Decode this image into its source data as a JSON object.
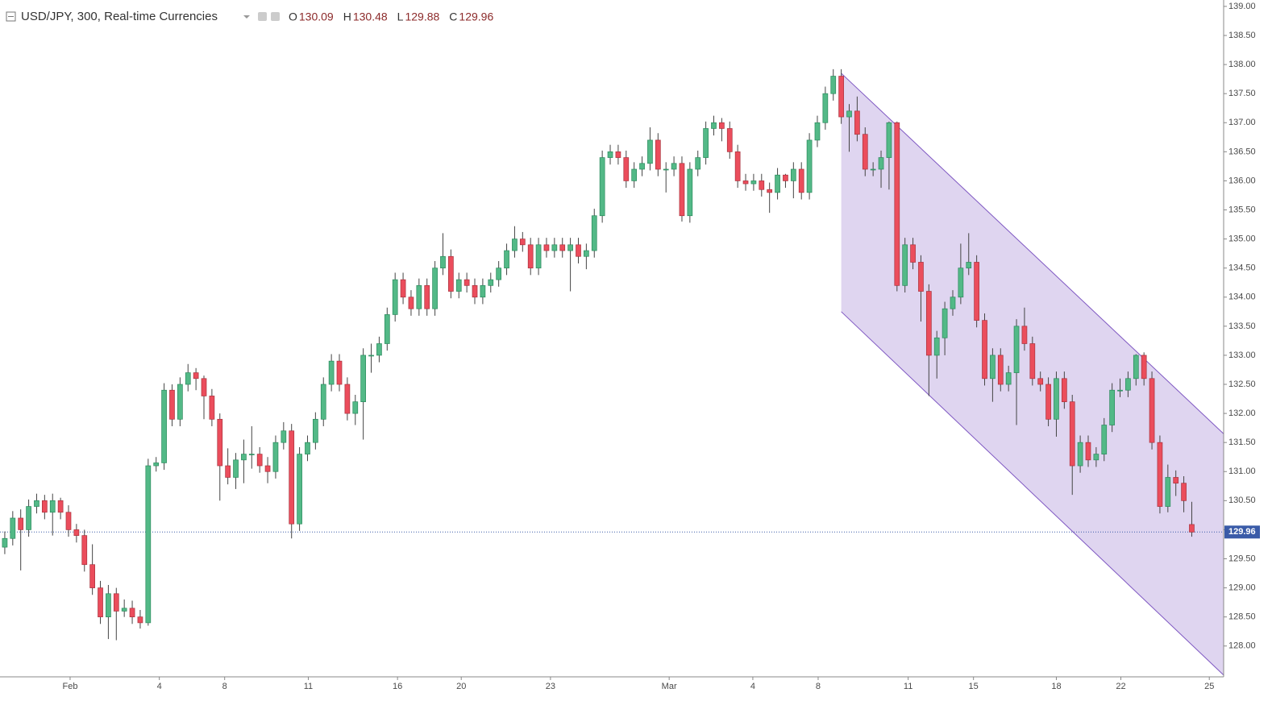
{
  "chart_data": {
    "type": "candlestick",
    "title": "USD/JPY, 300, Real-time Currencies",
    "ohlc_labels": [
      "O",
      "H",
      "L",
      "C"
    ],
    "up_color": "#53b987",
    "down_color": "#eb4d5c",
    "channel_color": "#7e57c2",
    "ylim": [
      127.47,
      139.11
    ],
    "xlim": [
      -0.6,
      153
    ],
    "yticks": [
      {
        "value": 128,
        "label": "128.00"
      },
      {
        "value": 128.5,
        "label": "128.50"
      },
      {
        "value": 129,
        "label": "129.00"
      },
      {
        "value": 129.5,
        "label": "129.50"
      },
      {
        "value": 130,
        "label": "130.00"
      },
      {
        "value": 130.5,
        "label": "130.50"
      },
      {
        "value": 131,
        "label": "131.00"
      },
      {
        "value": 131.5,
        "label": "131.50"
      },
      {
        "value": 132,
        "label": "132.00"
      },
      {
        "value": 132.5,
        "label": "132.50"
      },
      {
        "value": 133,
        "label": "133.00"
      },
      {
        "value": 133.5,
        "label": "133.50"
      },
      {
        "value": 134,
        "label": "134.00"
      },
      {
        "value": 134.5,
        "label": "134.50"
      },
      {
        "value": 135,
        "label": "135.00"
      },
      {
        "value": 135.5,
        "label": "135.50"
      },
      {
        "value": 136,
        "label": "136.00"
      },
      {
        "value": 136.5,
        "label": "136.50"
      },
      {
        "value": 137,
        "label": "137.00"
      },
      {
        "value": 137.5,
        "label": "137.50"
      },
      {
        "value": 138,
        "label": "138.00"
      },
      {
        "value": 138.5,
        "label": "138.50"
      },
      {
        "value": 139,
        "label": "139.00"
      }
    ],
    "xticks": [
      {
        "value": 8.2,
        "label": "Feb"
      },
      {
        "value": 19.4,
        "label": "4"
      },
      {
        "value": 27.6,
        "label": "8"
      },
      {
        "value": 38.1,
        "label": "11"
      },
      {
        "value": 49.3,
        "label": "16"
      },
      {
        "value": 57.3,
        "label": "20"
      },
      {
        "value": 68.5,
        "label": "23"
      },
      {
        "value": 83.4,
        "label": "Mar"
      },
      {
        "value": 93.9,
        "label": "4"
      },
      {
        "value": 102.1,
        "label": "8"
      },
      {
        "value": 113.4,
        "label": "11"
      },
      {
        "value": 121.6,
        "label": "15"
      },
      {
        "value": 132,
        "label": "18"
      },
      {
        "value": 140.1,
        "label": "22"
      },
      {
        "value": 151.2,
        "label": "25"
      }
    ],
    "channel": {
      "x": [
        105,
        153
      ],
      "upper": [
        137.85,
        131.65
      ],
      "lower": [
        133.75,
        127.5
      ]
    },
    "ohlc": [
      [
        129.7,
        129.97,
        129.58,
        129.85
      ],
      [
        129.85,
        130.32,
        129.73,
        130.2
      ],
      [
        130.2,
        130.35,
        129.3,
        130.0
      ],
      [
        130.0,
        130.52,
        129.88,
        130.4
      ],
      [
        130.4,
        130.62,
        130.28,
        130.5
      ],
      [
        130.5,
        130.6,
        130.18,
        130.3
      ],
      [
        130.3,
        130.62,
        129.9,
        130.5
      ],
      [
        130.5,
        130.55,
        130.18,
        130.3
      ],
      [
        130.3,
        130.42,
        129.88,
        130.0
      ],
      [
        130.0,
        130.1,
        129.78,
        129.9
      ],
      [
        129.9,
        130.0,
        129.28,
        129.4
      ],
      [
        129.4,
        129.75,
        128.88,
        129.0
      ],
      [
        129.0,
        129.12,
        128.38,
        128.5
      ],
      [
        128.5,
        129.05,
        128.12,
        128.9
      ],
      [
        128.9,
        129.0,
        128.1,
        128.6
      ],
      [
        128.6,
        128.8,
        128.5,
        128.65
      ],
      [
        128.65,
        128.78,
        128.38,
        128.5
      ],
      [
        128.5,
        128.62,
        128.3,
        128.4
      ],
      [
        128.4,
        131.22,
        128.35,
        131.1
      ],
      [
        131.1,
        131.25,
        131.0,
        131.15
      ],
      [
        131.15,
        132.52,
        131.03,
        132.4
      ],
      [
        132.4,
        132.5,
        131.78,
        131.9
      ],
      [
        131.9,
        132.62,
        131.78,
        132.5
      ],
      [
        132.5,
        132.85,
        132.38,
        132.7
      ],
      [
        132.7,
        132.78,
        132.4,
        132.6
      ],
      [
        132.6,
        132.65,
        131.9,
        132.3
      ],
      [
        132.3,
        132.42,
        131.78,
        131.9
      ],
      [
        131.9,
        132.0,
        130.5,
        131.1
      ],
      [
        131.1,
        131.4,
        130.78,
        130.9
      ],
      [
        130.9,
        131.32,
        130.7,
        131.2
      ],
      [
        131.2,
        131.55,
        130.8,
        131.3
      ],
      [
        131.3,
        131.78,
        131.05,
        131.3
      ],
      [
        131.3,
        131.42,
        130.98,
        131.1
      ],
      [
        131.1,
        131.25,
        130.8,
        131.0
      ],
      [
        131.0,
        131.62,
        130.88,
        131.5
      ],
      [
        131.5,
        131.85,
        131.38,
        131.7
      ],
      [
        131.7,
        131.82,
        129.85,
        130.1
      ],
      [
        130.1,
        131.42,
        129.98,
        131.3
      ],
      [
        131.3,
        131.62,
        131.18,
        131.5
      ],
      [
        131.5,
        132.02,
        131.38,
        131.9
      ],
      [
        131.9,
        132.62,
        131.78,
        132.5
      ],
      [
        132.5,
        133.02,
        132.38,
        132.9
      ],
      [
        132.9,
        133.02,
        132.38,
        132.5
      ],
      [
        132.5,
        132.62,
        131.88,
        132.0
      ],
      [
        132.0,
        132.32,
        131.8,
        132.2
      ],
      [
        132.2,
        133.12,
        131.55,
        133.0
      ],
      [
        133.0,
        133.2,
        132.7,
        133.0
      ],
      [
        133.0,
        133.32,
        132.88,
        133.2
      ],
      [
        133.2,
        133.82,
        133.08,
        133.7
      ],
      [
        133.7,
        134.42,
        133.58,
        134.3
      ],
      [
        134.3,
        134.42,
        133.88,
        134.0
      ],
      [
        134.0,
        134.12,
        133.68,
        133.8
      ],
      [
        133.8,
        134.32,
        133.68,
        134.2
      ],
      [
        134.2,
        134.32,
        133.68,
        133.8
      ],
      [
        133.8,
        134.62,
        133.68,
        134.5
      ],
      [
        134.5,
        135.1,
        134.38,
        134.7
      ],
      [
        134.7,
        134.82,
        133.98,
        134.1
      ],
      [
        134.1,
        134.42,
        133.98,
        134.3
      ],
      [
        134.3,
        134.42,
        134.08,
        134.2
      ],
      [
        134.2,
        134.32,
        133.88,
        134.0
      ],
      [
        134.0,
        134.32,
        133.88,
        134.2
      ],
      [
        134.2,
        134.42,
        134.08,
        134.3
      ],
      [
        134.3,
        134.62,
        134.18,
        134.5
      ],
      [
        134.5,
        134.92,
        134.38,
        134.8
      ],
      [
        134.8,
        135.22,
        134.68,
        135.0
      ],
      [
        135.0,
        135.12,
        134.78,
        134.9
      ],
      [
        134.9,
        135.02,
        134.38,
        134.5
      ],
      [
        134.5,
        135.02,
        134.38,
        134.9
      ],
      [
        134.9,
        135.02,
        134.68,
        134.8
      ],
      [
        134.8,
        135.02,
        134.68,
        134.9
      ],
      [
        134.9,
        135.02,
        134.68,
        134.8
      ],
      [
        134.8,
        135.02,
        134.1,
        134.9
      ],
      [
        134.9,
        135.02,
        134.58,
        134.7
      ],
      [
        134.7,
        134.92,
        134.48,
        134.8
      ],
      [
        134.8,
        135.52,
        134.68,
        135.4
      ],
      [
        135.4,
        136.52,
        135.28,
        136.4
      ],
      [
        136.4,
        136.62,
        136.28,
        136.5
      ],
      [
        136.5,
        136.62,
        136.28,
        136.4
      ],
      [
        136.4,
        136.52,
        135.88,
        136.0
      ],
      [
        136.0,
        136.32,
        135.88,
        136.2
      ],
      [
        136.2,
        136.42,
        136.08,
        136.3
      ],
      [
        136.3,
        136.92,
        136.18,
        136.7
      ],
      [
        136.7,
        136.82,
        136.08,
        136.2
      ],
      [
        136.2,
        136.32,
        135.8,
        136.2
      ],
      [
        136.2,
        136.42,
        136.08,
        136.3
      ],
      [
        136.3,
        136.42,
        135.3,
        135.4
      ],
      [
        135.4,
        136.32,
        135.28,
        136.2
      ],
      [
        136.2,
        136.52,
        136.08,
        136.4
      ],
      [
        136.4,
        137.02,
        136.28,
        136.9
      ],
      [
        136.9,
        137.12,
        136.78,
        137.0
      ],
      [
        137.0,
        137.08,
        136.68,
        136.9
      ],
      [
        136.9,
        137.02,
        136.38,
        136.5
      ],
      [
        136.5,
        136.62,
        135.88,
        136.0
      ],
      [
        136.0,
        136.12,
        135.83,
        135.95
      ],
      [
        135.95,
        136.12,
        135.83,
        136.0
      ],
      [
        136.0,
        136.12,
        135.73,
        135.85
      ],
      [
        135.85,
        135.97,
        135.45,
        135.8
      ],
      [
        135.8,
        136.22,
        135.68,
        136.1
      ],
      [
        136.1,
        136.12,
        135.88,
        136.0
      ],
      [
        136.0,
        136.32,
        135.7,
        136.2
      ],
      [
        136.2,
        136.32,
        135.68,
        135.8
      ],
      [
        135.8,
        136.82,
        135.68,
        136.7
      ],
      [
        136.7,
        137.12,
        136.58,
        137.0
      ],
      [
        137.0,
        137.62,
        136.88,
        137.5
      ],
      [
        137.5,
        137.92,
        137.38,
        137.8
      ],
      [
        137.8,
        137.92,
        136.98,
        137.1
      ],
      [
        137.1,
        137.32,
        136.5,
        137.2
      ],
      [
        137.2,
        137.45,
        136.68,
        136.8
      ],
      [
        136.8,
        136.92,
        136.08,
        136.2
      ],
      [
        136.2,
        136.32,
        136.08,
        136.2
      ],
      [
        136.2,
        136.52,
        135.88,
        136.4
      ],
      [
        136.4,
        137.02,
        135.85,
        137.0
      ],
      [
        137.0,
        137.02,
        134.1,
        134.2
      ],
      [
        134.2,
        135.02,
        134.08,
        134.9
      ],
      [
        134.9,
        135.02,
        134.48,
        134.6
      ],
      [
        134.6,
        134.72,
        133.58,
        134.1
      ],
      [
        134.1,
        134.22,
        132.3,
        133.0
      ],
      [
        133.0,
        133.42,
        132.6,
        133.3
      ],
      [
        133.3,
        133.92,
        133.0,
        133.8
      ],
      [
        133.8,
        134.12,
        133.68,
        134.0
      ],
      [
        134.0,
        134.92,
        133.88,
        134.5
      ],
      [
        134.5,
        135.1,
        134.38,
        134.6
      ],
      [
        134.6,
        134.72,
        133.48,
        133.6
      ],
      [
        133.6,
        133.72,
        132.48,
        132.6
      ],
      [
        132.6,
        133.12,
        132.2,
        133.0
      ],
      [
        133.0,
        133.12,
        132.38,
        132.5
      ],
      [
        132.5,
        132.82,
        132.38,
        132.7
      ],
      [
        132.7,
        133.62,
        131.8,
        133.5
      ],
      [
        133.5,
        133.82,
        133.08,
        133.2
      ],
      [
        133.2,
        133.32,
        132.48,
        132.6
      ],
      [
        132.6,
        132.72,
        132.38,
        132.5
      ],
      [
        132.5,
        132.62,
        131.78,
        131.9
      ],
      [
        131.9,
        132.72,
        131.6,
        132.6
      ],
      [
        132.6,
        132.72,
        132.08,
        132.2
      ],
      [
        132.2,
        132.32,
        130.6,
        131.1
      ],
      [
        131.1,
        131.62,
        130.98,
        131.5
      ],
      [
        131.5,
        131.62,
        131.08,
        131.2
      ],
      [
        131.2,
        131.42,
        131.08,
        131.3
      ],
      [
        131.3,
        131.92,
        131.18,
        131.8
      ],
      [
        131.8,
        132.52,
        131.68,
        132.4
      ],
      [
        132.4,
        132.6,
        132.28,
        132.4
      ],
      [
        132.4,
        132.72,
        132.28,
        132.6
      ],
      [
        132.6,
        133.02,
        132.48,
        133.0
      ],
      [
        133.0,
        133.05,
        132.48,
        132.6
      ],
      [
        132.6,
        132.72,
        131.38,
        131.5
      ],
      [
        131.5,
        131.62,
        130.28,
        130.4
      ],
      [
        130.4,
        131.12,
        130.3,
        130.9
      ],
      [
        130.9,
        131.02,
        130.58,
        130.8
      ],
      [
        130.8,
        130.92,
        130.3,
        130.5
      ],
      [
        130.09,
        130.48,
        129.88,
        129.96
      ]
    ]
  }
}
